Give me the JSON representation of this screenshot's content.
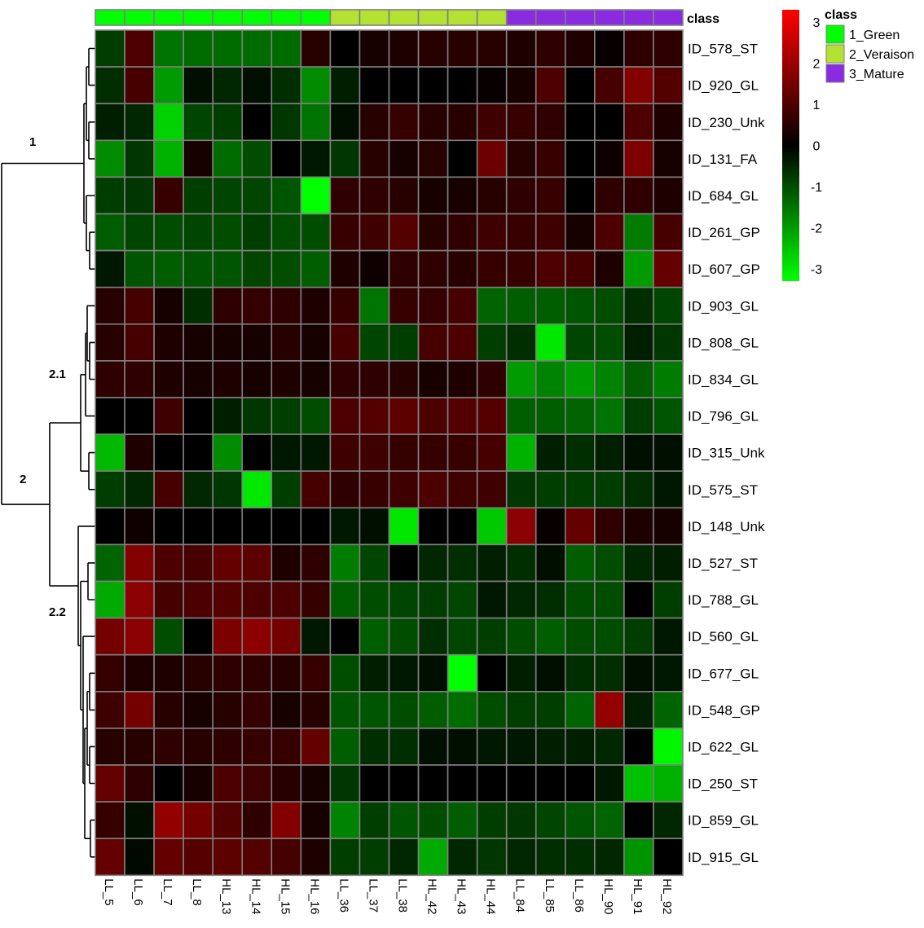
{
  "chart_data": {
    "type": "heatmap",
    "title": "",
    "columns": [
      "LL_5",
      "LL_6",
      "LL_7",
      "LL_8",
      "HL_13",
      "HL_14",
      "HL_15",
      "HL_16",
      "LL_36",
      "LL_37",
      "LL_38",
      "HL_42",
      "HL_43",
      "HL_44",
      "LL_84",
      "LL_85",
      "LL_86",
      "HL_90",
      "HL_91",
      "HL_92"
    ],
    "column_class": [
      "1_Green",
      "1_Green",
      "1_Green",
      "1_Green",
      "1_Green",
      "1_Green",
      "1_Green",
      "1_Green",
      "2_Veraison",
      "2_Veraison",
      "2_Veraison",
      "2_Veraison",
      "2_Veraison",
      "2_Veraison",
      "3_Mature",
      "3_Mature",
      "3_Mature",
      "3_Mature",
      "3_Mature",
      "3_Mature"
    ],
    "class_annotation_label": "class",
    "rows": [
      "ID_578_ST",
      "ID_920_GL",
      "ID_230_Unk",
      "ID_131_FA",
      "ID_684_GL",
      "ID_261_GP",
      "ID_607_GP",
      "ID_903_GL",
      "ID_808_GL",
      "ID_834_GL",
      "ID_796_GL",
      "ID_315_Unk",
      "ID_575_ST",
      "ID_148_Unk",
      "ID_527_ST",
      "ID_788_GL",
      "ID_560_GL",
      "ID_677_GL",
      "ID_548_GP",
      "ID_622_GL",
      "ID_250_ST",
      "ID_859_GL",
      "ID_915_GL"
    ],
    "values": [
      [
        -0.8,
        1.0,
        -1.5,
        -1.4,
        -1.4,
        -1.4,
        -1.4,
        0.5,
        0.0,
        0.3,
        0.4,
        0.5,
        0.5,
        0.5,
        0.4,
        0.6,
        0.4,
        0.1,
        0.6,
        0.6
      ],
      [
        -0.6,
        0.9,
        -2.0,
        -0.2,
        -0.5,
        -0.2,
        -0.6,
        -1.8,
        -0.4,
        0.0,
        0.0,
        0.0,
        0.0,
        0.1,
        0.3,
        1.0,
        0.0,
        0.9,
        1.7,
        1.1
      ],
      [
        -0.4,
        -0.5,
        -2.7,
        -0.9,
        -0.8,
        0.0,
        -0.7,
        -1.5,
        -0.2,
        0.5,
        0.7,
        0.5,
        0.5,
        0.8,
        0.7,
        0.6,
        0.0,
        0.0,
        1.0,
        0.4
      ],
      [
        -1.8,
        -0.7,
        -2.3,
        0.3,
        -1.4,
        -1.0,
        0.0,
        -0.3,
        -0.7,
        0.5,
        0.3,
        0.5,
        0.0,
        1.4,
        0.5,
        0.7,
        0.0,
        0.2,
        1.6,
        0.3
      ],
      [
        -0.8,
        -0.7,
        0.7,
        -0.8,
        -0.9,
        -0.9,
        -1.1,
        -3.3,
        0.6,
        0.6,
        0.5,
        0.3,
        0.3,
        0.5,
        0.6,
        0.7,
        0.0,
        0.6,
        0.6,
        0.4
      ],
      [
        -1.2,
        -0.9,
        -1.0,
        -0.9,
        -1.0,
        -0.8,
        -1.0,
        -1.0,
        0.7,
        0.8,
        1.1,
        0.5,
        0.6,
        0.8,
        0.7,
        0.8,
        0.3,
        1.0,
        -1.6,
        0.9
      ],
      [
        -0.3,
        -1.1,
        -1.2,
        -1.1,
        -1.1,
        -0.9,
        -1.0,
        -1.2,
        0.4,
        0.2,
        0.6,
        0.6,
        0.5,
        0.7,
        0.7,
        1.0,
        0.9,
        0.4,
        -2.0,
        1.3
      ],
      [
        0.5,
        0.9,
        0.3,
        -0.6,
        0.6,
        0.7,
        0.6,
        0.4,
        0.7,
        -1.5,
        0.7,
        0.7,
        0.9,
        -1.3,
        -1.2,
        -1.2,
        -1.1,
        -1.0,
        -0.6,
        -0.9
      ],
      [
        0.5,
        0.9,
        0.4,
        0.3,
        0.3,
        0.3,
        0.5,
        0.3,
        0.9,
        -0.9,
        -0.8,
        0.9,
        1.0,
        -0.8,
        -0.6,
        -3.0,
        -0.9,
        -1.0,
        -0.4,
        -0.7
      ],
      [
        0.6,
        0.6,
        0.4,
        0.3,
        0.4,
        0.3,
        0.4,
        0.3,
        0.6,
        0.6,
        0.5,
        0.3,
        0.4,
        0.6,
        -2.0,
        -1.7,
        -2.0,
        -1.7,
        -1.2,
        -1.6
      ],
      [
        0.0,
        0.0,
        0.8,
        0.0,
        -0.4,
        -0.7,
        -0.8,
        -1.0,
        1.0,
        1.1,
        1.2,
        1.0,
        1.1,
        1.1,
        -1.2,
        -1.2,
        -1.3,
        -1.5,
        -0.8,
        -1.1
      ],
      [
        -2.4,
        0.4,
        0.0,
        0.0,
        -1.8,
        0.0,
        -0.3,
        -0.3,
        0.8,
        0.8,
        0.7,
        0.7,
        0.7,
        0.9,
        -2.3,
        -0.4,
        -0.6,
        -0.4,
        -0.2,
        -0.2
      ],
      [
        -0.8,
        -0.5,
        0.9,
        -0.5,
        -0.7,
        -3.0,
        -0.8,
        0.9,
        0.6,
        0.7,
        0.8,
        1.0,
        0.8,
        0.8,
        -0.7,
        -0.8,
        -0.8,
        -0.8,
        -0.6,
        -0.3
      ],
      [
        0.0,
        0.2,
        0.0,
        0.0,
        0.0,
        0.0,
        0.0,
        0.0,
        -0.3,
        -0.2,
        -3.0,
        0.0,
        0.0,
        -2.6,
        1.8,
        0.1,
        1.3,
        0.6,
        0.4,
        0.3
      ],
      [
        -1.3,
        1.7,
        1.0,
        0.9,
        1.3,
        1.2,
        0.4,
        0.6,
        -1.6,
        -0.9,
        0.0,
        -0.5,
        -0.6,
        -0.4,
        -0.6,
        -0.2,
        -1.2,
        -1.0,
        -0.5,
        -0.4
      ],
      [
        -2.2,
        1.8,
        0.9,
        1.0,
        1.1,
        1.0,
        1.0,
        0.7,
        -1.2,
        -1.0,
        -0.9,
        -0.8,
        -0.9,
        -0.3,
        -0.5,
        -0.6,
        -1.0,
        -1.0,
        0.0,
        -0.8
      ],
      [
        1.5,
        1.8,
        -1.0,
        0.0,
        1.6,
        1.8,
        1.5,
        -0.3,
        0.0,
        -1.2,
        -1.0,
        -0.6,
        -0.9,
        -0.8,
        -1.0,
        -1.2,
        -1.0,
        -1.0,
        -0.8,
        -0.3
      ],
      [
        0.7,
        0.4,
        0.4,
        0.5,
        0.6,
        0.6,
        0.5,
        0.7,
        -1.0,
        -0.4,
        -0.3,
        -0.2,
        -3.3,
        0.0,
        -0.4,
        -0.2,
        -0.6,
        -0.6,
        -0.2,
        -0.3
      ],
      [
        0.8,
        1.5,
        0.5,
        0.3,
        0.5,
        0.7,
        0.3,
        0.5,
        -1.1,
        -1.1,
        -1.0,
        -1.2,
        -1.4,
        -1.0,
        -0.8,
        -0.8,
        -1.3,
        1.9,
        -0.4,
        -1.3
      ],
      [
        0.5,
        0.5,
        0.6,
        0.5,
        0.6,
        0.7,
        0.7,
        1.3,
        -1.2,
        -0.6,
        -0.6,
        -0.2,
        -0.2,
        -0.3,
        -0.3,
        -0.4,
        -0.4,
        -0.5,
        0.0,
        -3.2
      ],
      [
        1.3,
        0.6,
        0.0,
        0.3,
        1.0,
        0.8,
        0.5,
        0.3,
        -0.7,
        0.0,
        0.0,
        0.0,
        0.0,
        0.0,
        0.0,
        0.0,
        0.0,
        -0.3,
        -2.5,
        -2.3
      ],
      [
        0.7,
        -0.2,
        1.9,
        1.5,
        1.1,
        0.6,
        1.7,
        0.3,
        -1.7,
        -0.8,
        -1.1,
        -1.0,
        -1.2,
        -0.8,
        -0.7,
        -0.9,
        -1.1,
        -1.3,
        0.0,
        -0.5
      ],
      [
        1.3,
        -0.1,
        1.3,
        1.1,
        1.2,
        1.1,
        0.9,
        0.4,
        -0.8,
        -0.8,
        -0.5,
        -2.2,
        -0.5,
        -0.7,
        -0.5,
        -0.6,
        -0.6,
        -0.5,
        -1.9,
        0.0
      ]
    ],
    "color_scale": {
      "low": "#00ff00",
      "mid": "#000000",
      "high": "#ff0000",
      "range": [
        -3.3,
        3.3
      ],
      "ticks": [
        "3",
        "2",
        "1",
        "0",
        "-1",
        "-2",
        "-3"
      ]
    },
    "legend": {
      "title": "class",
      "placement": "top-right",
      "entries": [
        {
          "label": "1_Green",
          "color": "#00ff00"
        },
        {
          "label": "2_Veraison",
          "color": "#b3e232"
        },
        {
          "label": "3_Mature",
          "color": "#8a2be2"
        }
      ]
    },
    "cluster_labels": [
      "1",
      "2",
      "2.1",
      "2.2"
    ],
    "grid_color": "#808080"
  }
}
